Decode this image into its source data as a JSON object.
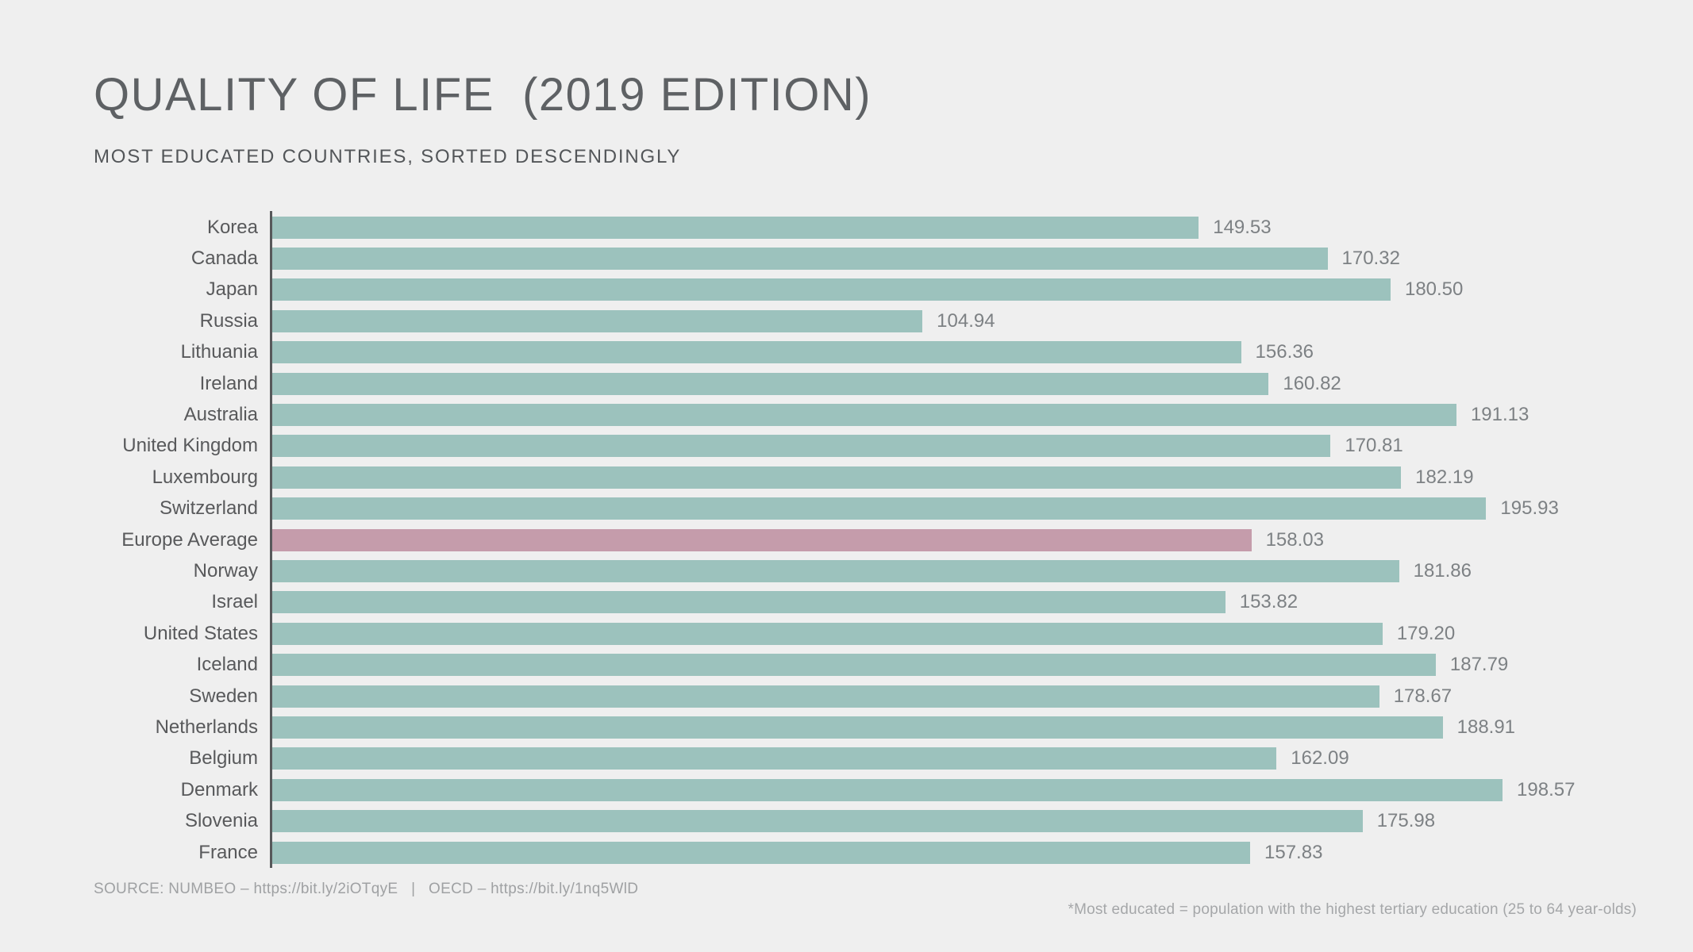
{
  "title": "QUALITY OF LIFE  (2019 EDITION)",
  "subtitle": "MOST EDUCATED COUNTRIES, SORTED DESCENDINGLY",
  "footer": {
    "source": "SOURCE: NUMBEO – https://bit.ly/2iOTqyE   |   OECD – https://bit.ly/1nq5WlD",
    "footnote": "*Most educated = population with the highest tertiary education (25 to 64 year-olds)"
  },
  "colors": {
    "background": "#efefef",
    "bar": "#9cc2bd",
    "highlight_bar": "#c59cab",
    "axis": "#57585a",
    "country_label": "#58595b",
    "value_label": "#7d8184",
    "title_text": "#5e6164",
    "subtitle_text": "#535659",
    "footer_text": "#9fa1a3"
  },
  "chart_data": {
    "type": "bar",
    "orientation": "horizontal",
    "title": "QUALITY OF LIFE  (2019 EDITION)",
    "subtitle": "MOST EDUCATED COUNTRIES, SORTED DESCENDINGLY",
    "categories": [
      "Korea",
      "Canada",
      "Japan",
      "Russia",
      "Lithuania",
      "Ireland",
      "Australia",
      "United Kingdom",
      "Luxembourg",
      "Switzerland",
      "Europe Average",
      "Norway",
      "Israel",
      "United States",
      "Iceland",
      "Sweden",
      "Netherlands",
      "Belgium",
      "Denmark",
      "Slovenia",
      "France"
    ],
    "values": [
      149.53,
      170.32,
      180.5,
      104.94,
      156.36,
      160.82,
      191.13,
      170.81,
      182.19,
      195.93,
      158.03,
      181.86,
      153.82,
      179.2,
      187.79,
      178.67,
      188.91,
      162.09,
      198.57,
      175.98,
      157.83
    ],
    "highlighted_category": "Europe Average",
    "value_labels_shown": true,
    "value_decimals": 2,
    "xlim": [
      0,
      229
    ],
    "grid": false,
    "legend": false
  }
}
